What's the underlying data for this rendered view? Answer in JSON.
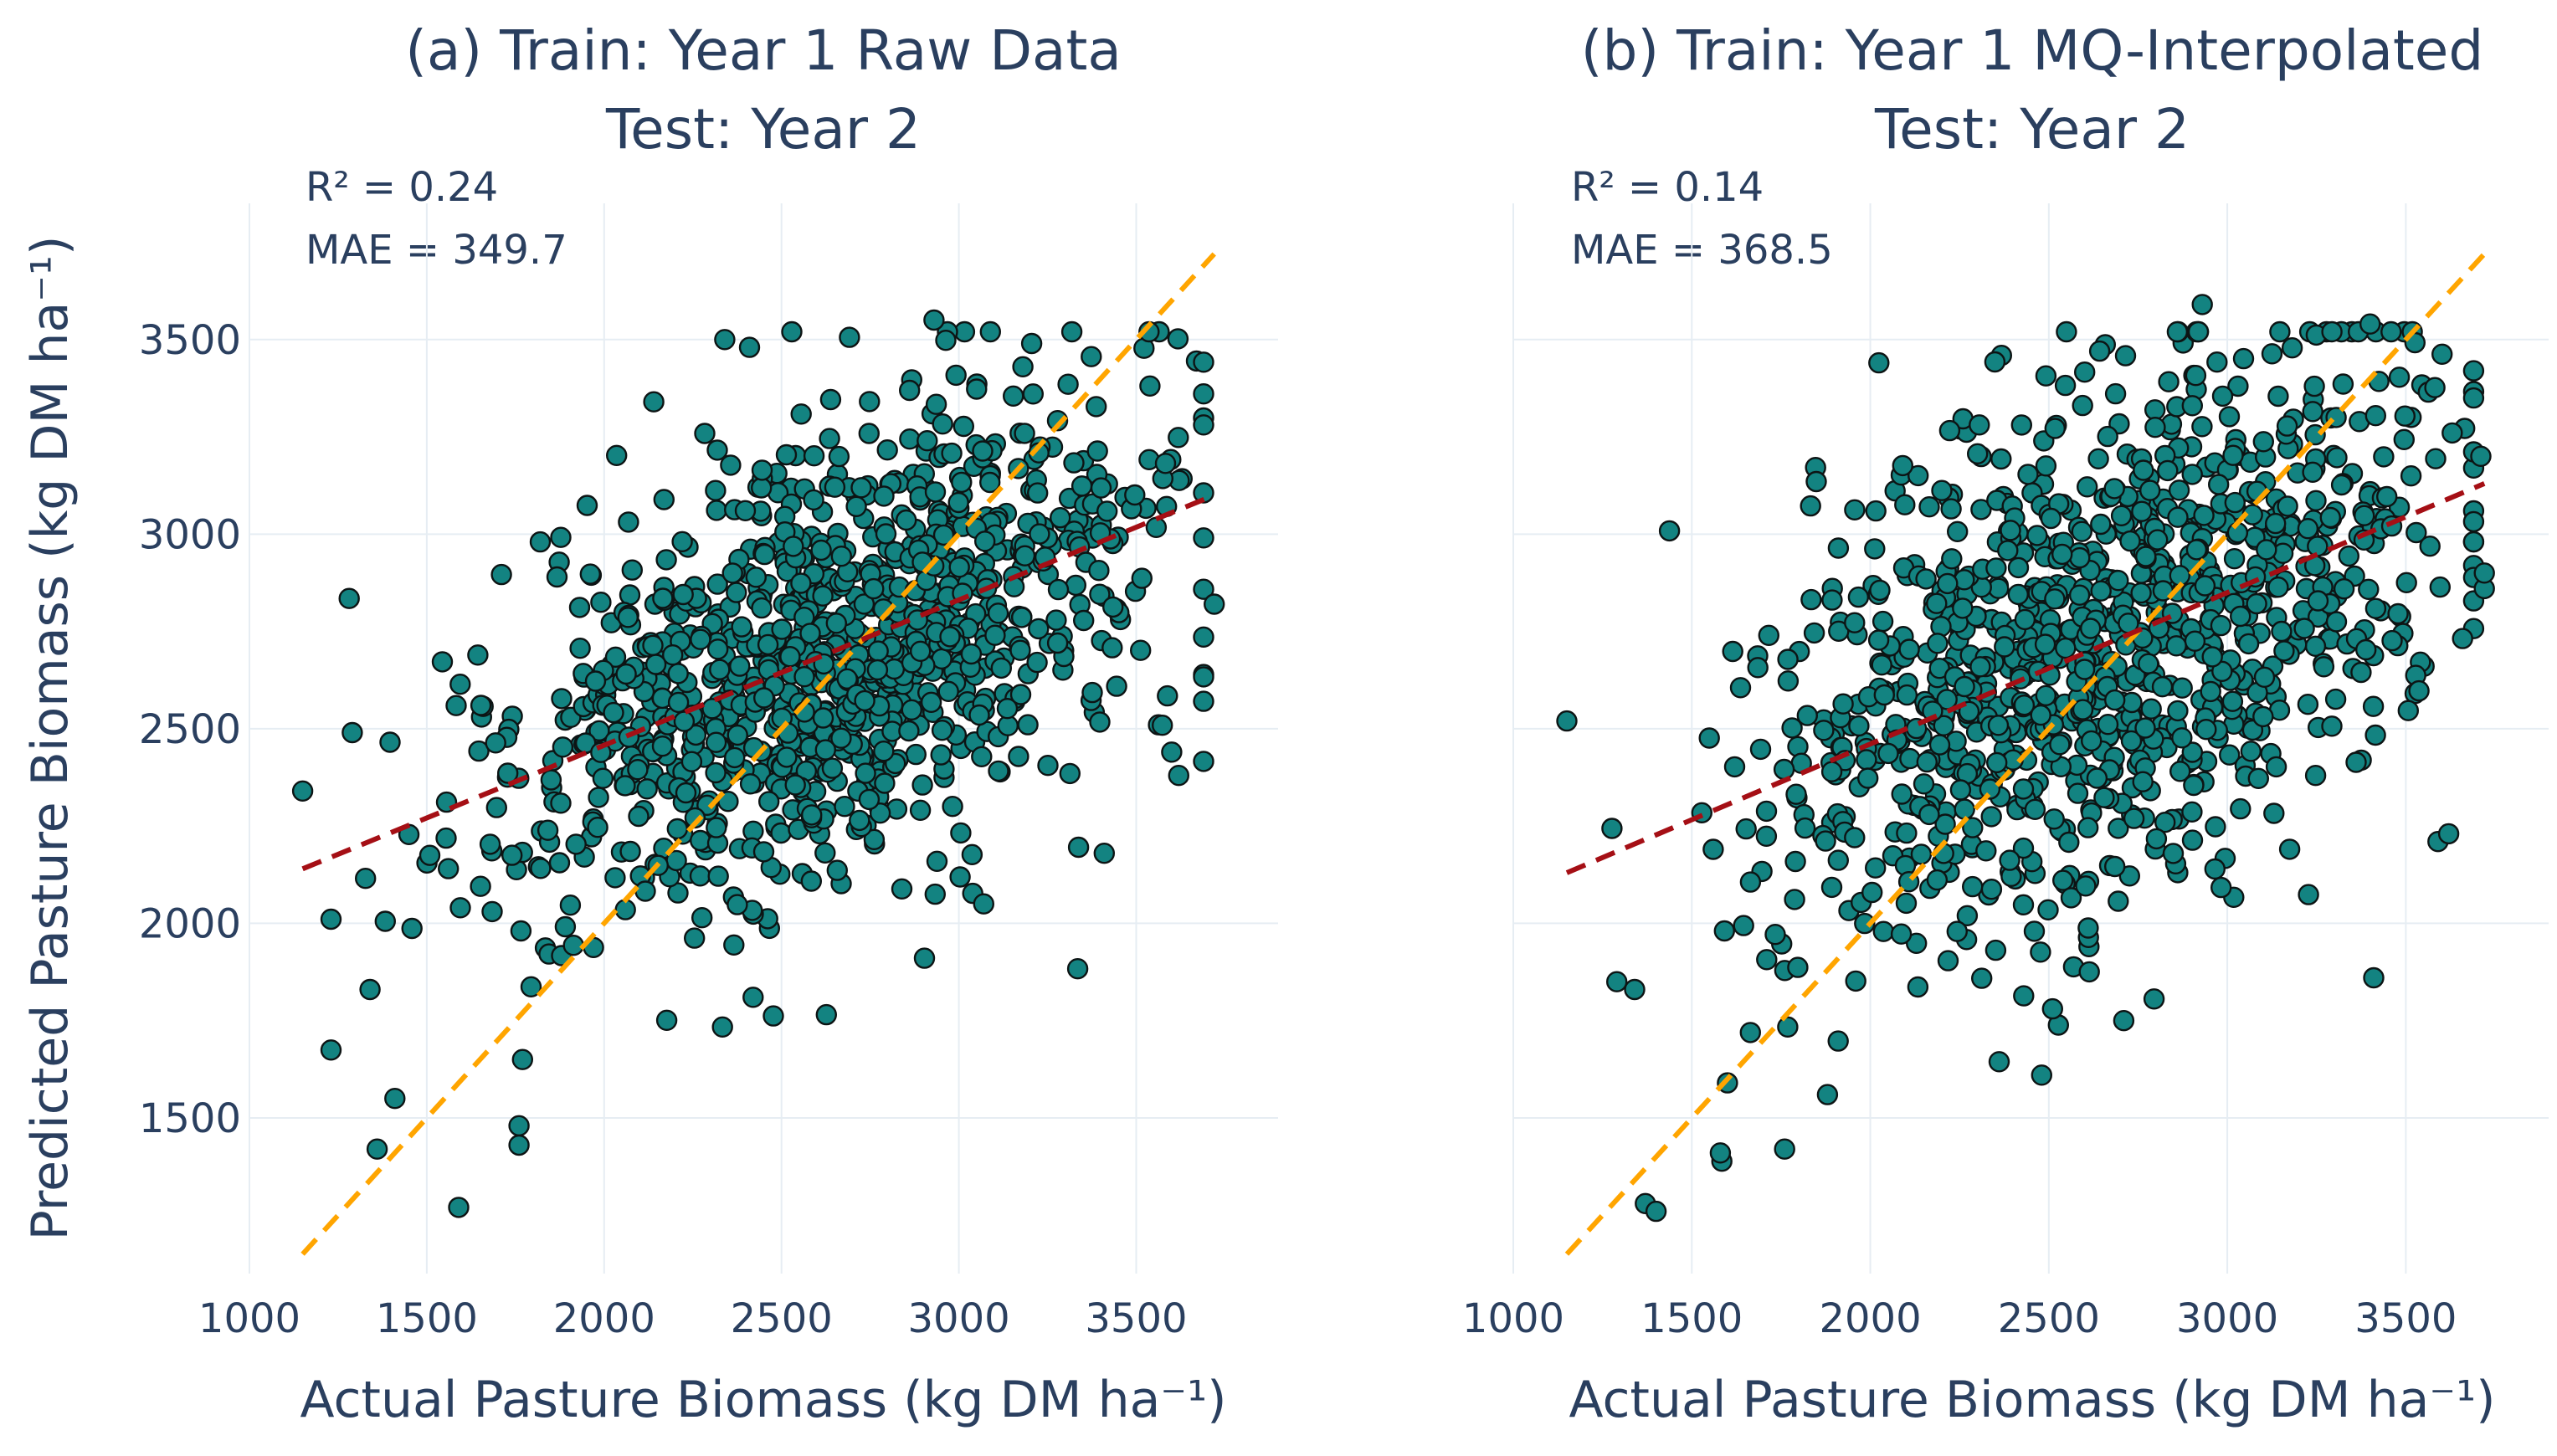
{
  "chart_data": [
    {
      "type": "scatter",
      "panel": "a",
      "title_line1": "(a) Train: Year 1 Raw Data",
      "title_line2": "Test: Year 2",
      "xlabel": "Actual Pasture Biomass (kg DM ha⁻¹)",
      "ylabel": "Predicted Pasture Biomass (kg DM ha⁻¹)",
      "xlim": [
        1000,
        3900
      ],
      "ylim": [
        1100,
        3850
      ],
      "xticks": [
        1000,
        1500,
        2000,
        2500,
        3000,
        3500
      ],
      "yticks": [
        1500,
        2000,
        2500,
        3000,
        3500
      ],
      "annotations": {
        "r2": "R² = 0.24",
        "mae": "MAE = 349.7"
      },
      "identity_line": {
        "x": [
          1150,
          3720
        ],
        "y": [
          1150,
          3720
        ],
        "color": "#FFA500"
      },
      "fit_line": {
        "x": [
          1150,
          3720
        ],
        "y": [
          2140,
          3100
        ],
        "color": "#A50F15"
      },
      "marker_color": "#138381",
      "n_points": 1100,
      "x_range": [
        1150,
        3720
      ],
      "points_sample": [
        [
          1150,
          2340
        ],
        [
          1290,
          2490
        ],
        [
          1340,
          1830
        ],
        [
          1360,
          1420
        ],
        [
          1410,
          1550
        ],
        [
          1590,
          1270
        ],
        [
          1760,
          1430
        ],
        [
          1760,
          1480
        ],
        [
          1770,
          1650
        ],
        [
          1820,
          2980
        ],
        [
          2140,
          3340
        ],
        [
          2340,
          3500
        ],
        [
          2410,
          3480
        ],
        [
          2420,
          1810
        ],
        [
          2930,
          3550
        ],
        [
          3070,
          2050
        ],
        [
          3410,
          2180
        ],
        [
          3600,
          2440
        ],
        [
          3620,
          2380
        ],
        [
          3720,
          2820
        ]
      ]
    },
    {
      "type": "scatter",
      "panel": "b",
      "title_line1": "(b) Train: Year 1 MQ-Interpolated",
      "title_line2": "Test: Year 2",
      "xlabel": "Actual Pasture Biomass (kg DM ha⁻¹)",
      "ylabel": "",
      "xlim": [
        1000,
        3900
      ],
      "ylim": [
        1100,
        3850
      ],
      "xticks": [
        1000,
        1500,
        2000,
        2500,
        3000,
        3500
      ],
      "yticks": [
        1500,
        2000,
        2500,
        3000,
        3500
      ],
      "annotations": {
        "r2": "R² = 0.14",
        "mae": "MAE = 368.5"
      },
      "identity_line": {
        "x": [
          1150,
          3720
        ],
        "y": [
          1150,
          3720
        ],
        "color": "#FFA500"
      },
      "fit_line": {
        "x": [
          1150,
          3720
        ],
        "y": [
          2130,
          3130
        ],
        "color": "#A50F15"
      },
      "marker_color": "#138381",
      "n_points": 1100,
      "x_range": [
        1150,
        3720
      ],
      "points_sample": [
        [
          1150,
          2520
        ],
        [
          1290,
          1850
        ],
        [
          1340,
          1830
        ],
        [
          1370,
          1280
        ],
        [
          1400,
          1260
        ],
        [
          1580,
          1410
        ],
        [
          1600,
          1590
        ],
        [
          1760,
          1420
        ],
        [
          1880,
          1560
        ],
        [
          2480,
          1610
        ],
        [
          2710,
          1750
        ],
        [
          2930,
          3590
        ],
        [
          3400,
          3540
        ],
        [
          3410,
          1860
        ],
        [
          3590,
          2210
        ],
        [
          3620,
          2230
        ],
        [
          3630,
          3260
        ],
        [
          3720,
          2860
        ],
        [
          3720,
          2900
        ],
        [
          3710,
          3200
        ]
      ]
    }
  ]
}
